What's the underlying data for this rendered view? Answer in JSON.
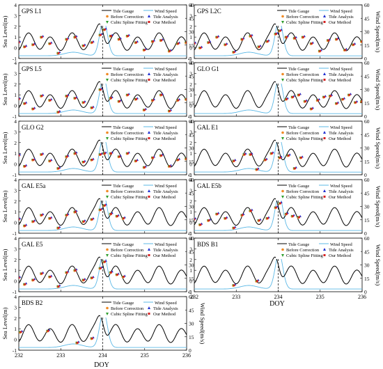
{
  "figure": {
    "doy_label": "DOY",
    "left_axis_label": "Sea Level(m)",
    "right_axis_label": "Wind Speed(m/s)",
    "legend": {
      "tide_gauge": "Tide Gauge",
      "wind_speed": "Wind Speed",
      "before_correction": "Before Correction",
      "tide_analysis": "Tide Analysis",
      "cubic_spline": "Cubic Spline Fitting",
      "our_method": "Our Method"
    },
    "colors": {
      "tide_gauge": "#000000",
      "wind_speed": "#5bb8e6",
      "before_correction": "#f08a24",
      "tide_analysis": "#1f2fd0",
      "cubic_spline": "#2e9e2e",
      "our_method": "#d62020"
    }
  },
  "chart_data": [
    {
      "title": "GPS L1",
      "type": "line+scatter",
      "xlim": [
        232,
        236
      ],
      "ylim": [
        -1,
        4
      ],
      "y2lim": [
        0,
        60
      ],
      "vline_doy": 234.0,
      "x": [
        232.0,
        232.15,
        232.35,
        232.55,
        232.75,
        232.95,
        233.15,
        233.35,
        233.55,
        233.75,
        233.95,
        234.05,
        234.2,
        234.4,
        234.6,
        234.8,
        235.0,
        235.2,
        235.4,
        235.6,
        235.8,
        236.0
      ],
      "y": [
        0.5,
        0.1,
        0.3,
        1.0,
        0.4,
        -0.5,
        0.8,
        1.0,
        0.2,
        0.5,
        1.2,
        1.7,
        1.1,
        0.8,
        1.1,
        0.5,
        -0.2,
        0.6,
        0.7,
        -0.3,
        0.4,
        0.5
      ]
    },
    {
      "title": "GPS L2C",
      "type": "line+scatter",
      "xlim": [
        232,
        236
      ],
      "ylim": [
        -1,
        4
      ],
      "y2lim": [
        0,
        60
      ],
      "vline_doy": 234.0,
      "x": [
        232.0,
        232.15,
        232.35,
        232.55,
        232.75,
        232.95,
        233.15,
        233.35,
        233.55,
        233.75,
        233.95,
        234.05,
        234.2,
        234.4,
        234.6,
        234.8,
        235.0,
        235.2,
        235.4,
        235.6,
        235.8,
        236.0
      ],
      "y": [
        0.4,
        0.0,
        0.5,
        1.0,
        0.3,
        -0.4,
        0.8,
        1.1,
        0.1,
        0.6,
        1.3,
        1.6,
        1.0,
        0.9,
        1.0,
        0.4,
        -0.3,
        0.7,
        0.8,
        -0.2,
        0.3,
        0.6
      ]
    },
    {
      "title": "GPS L5",
      "type": "line+scatter",
      "xlim": [
        232,
        236
      ],
      "ylim": [
        -1,
        4
      ],
      "y2lim": [
        0,
        60
      ],
      "vline_doy": 234.0,
      "x": [
        232.0,
        232.15,
        232.35,
        232.55,
        232.75,
        232.95,
        233.15,
        233.35,
        233.55,
        233.75,
        233.95,
        234.05,
        234.2,
        234.4,
        234.6,
        234.8,
        235.0,
        235.2,
        235.4,
        235.6,
        235.8,
        236.0
      ],
      "y": [
        0.6,
        0.2,
        -0.3,
        0.9,
        0.5,
        -0.6,
        0.9,
        0.7,
        0.3,
        -0.2,
        1.5,
        2.4,
        0.7,
        0.4,
        1.0,
        0.6,
        -0.4,
        0.5,
        1.0,
        -0.5,
        0.5,
        0.6
      ]
    },
    {
      "title": "GLO G1",
      "type": "line+scatter",
      "xlim": [
        232,
        236
      ],
      "ylim": [
        -1,
        4
      ],
      "y2lim": [
        0,
        60
      ],
      "vline_doy": 234.0,
      "x": [
        234.2,
        234.35,
        234.5,
        234.65,
        234.8,
        234.95,
        235.1,
        235.25,
        235.4,
        235.55,
        235.7,
        235.85,
        236.0
      ],
      "y": [
        0.6,
        0.8,
        1.0,
        0.4,
        -0.3,
        0.5,
        0.8,
        0.9,
        0.2,
        0.6,
        1.0,
        0.3,
        0.4
      ]
    },
    {
      "title": "GLO G2",
      "type": "line+scatter",
      "xlim": [
        232,
        236
      ],
      "ylim": [
        -1,
        4
      ],
      "y2lim": [
        0,
        60
      ],
      "vline_doy": 234.0,
      "x": [
        232.0,
        232.15,
        232.35,
        232.55,
        232.75,
        232.95,
        233.15,
        233.35,
        233.55,
        233.75,
        233.95,
        234.05,
        234.2,
        234.4,
        234.6,
        234.8,
        235.0,
        235.2,
        235.4,
        235.6,
        235.8,
        236.0
      ],
      "y": [
        0.8,
        -0.2,
        0.4,
        0.9,
        0.3,
        -0.4,
        0.7,
        1.0,
        0.2,
        0.4,
        0.9,
        1.0,
        1.0,
        0.7,
        1.0,
        0.3,
        -0.3,
        0.6,
        0.8,
        -0.2,
        0.4,
        0.5
      ]
    },
    {
      "title": "GAL E1",
      "type": "line+scatter",
      "xlim": [
        232,
        236
      ],
      "ylim": [
        -1,
        4
      ],
      "y2lim": [
        0,
        60
      ],
      "vline_doy": 234.0,
      "x": [
        232.95,
        233.2,
        233.35,
        233.5,
        233.7,
        233.85,
        234.05,
        234.25,
        234.4,
        234.55
      ],
      "y": [
        0.3,
        0.9,
        0.9,
        -0.5,
        0.4,
        1.0,
        0.6,
        0.8,
        -0.4,
        0.6
      ]
    },
    {
      "title": "GAL E5a",
      "type": "line+scatter",
      "xlim": [
        232,
        236
      ],
      "ylim": [
        -1,
        4
      ],
      "y2lim": [
        0,
        60
      ],
      "vline_doy": 234.0,
      "x": [
        232.0,
        232.15,
        232.35,
        232.55,
        232.75,
        232.95,
        233.15,
        233.35,
        233.55,
        233.75,
        233.95,
        234.05,
        234.2,
        234.35,
        234.5
      ],
      "y": [
        0.3,
        -0.3,
        0.1,
        0.7,
        0.4,
        -0.5,
        0.7,
        1.0,
        0.1,
        0.3,
        1.2,
        1.6,
        0.8,
        0.6,
        0.4
      ]
    },
    {
      "title": "GAL E5b",
      "type": "line+scatter",
      "xlim": [
        232,
        236
      ],
      "ylim": [
        -1,
        4
      ],
      "y2lim": [
        0,
        60
      ],
      "vline_doy": 234.0,
      "x": [
        232.0,
        232.15,
        232.35,
        232.55,
        232.75,
        232.95,
        233.15,
        233.35,
        233.55,
        233.75,
        233.95,
        234.05,
        234.2,
        234.35,
        234.5
      ],
      "y": [
        0.3,
        -0.2,
        0.2,
        0.8,
        0.4,
        -0.5,
        0.7,
        1.1,
        0.2,
        0.4,
        1.4,
        1.8,
        0.8,
        0.6,
        0.5
      ]
    },
    {
      "title": "GAL E5",
      "type": "line+scatter",
      "xlim": [
        232,
        236
      ],
      "ylim": [
        -1,
        4
      ],
      "y2lim": [
        0,
        60
      ],
      "vline_doy": 234.0,
      "x": [
        232.0,
        232.15,
        232.35,
        232.55,
        232.75,
        232.95,
        233.15,
        233.35,
        233.55,
        233.75,
        233.95,
        234.05,
        234.2,
        234.35,
        234.5
      ],
      "y": [
        0.3,
        -0.3,
        0.1,
        0.7,
        0.4,
        -0.5,
        0.8,
        1.0,
        0.1,
        0.3,
        1.2,
        1.8,
        0.8,
        0.6,
        0.4
      ]
    },
    {
      "title": "BDS B1",
      "type": "line+scatter",
      "xlim": [
        232,
        236
      ],
      "ylim": [
        -1,
        4
      ],
      "y2lim": [
        0,
        60
      ],
      "vline_doy": 234.0,
      "x": [
        232.95,
        233.5
      ],
      "y": [
        -0.4,
        0.0
      ]
    },
    {
      "title": "BDS B2",
      "type": "line+scatter",
      "xlim": [
        232,
        236
      ],
      "ylim": [
        -1,
        4
      ],
      "y2lim": [
        0,
        60
      ],
      "vline_doy": 234.0,
      "x": [
        232.05,
        232.7,
        233.4,
        233.75
      ],
      "y": [
        0.7,
        0.8,
        -0.3,
        0.1
      ]
    }
  ]
}
